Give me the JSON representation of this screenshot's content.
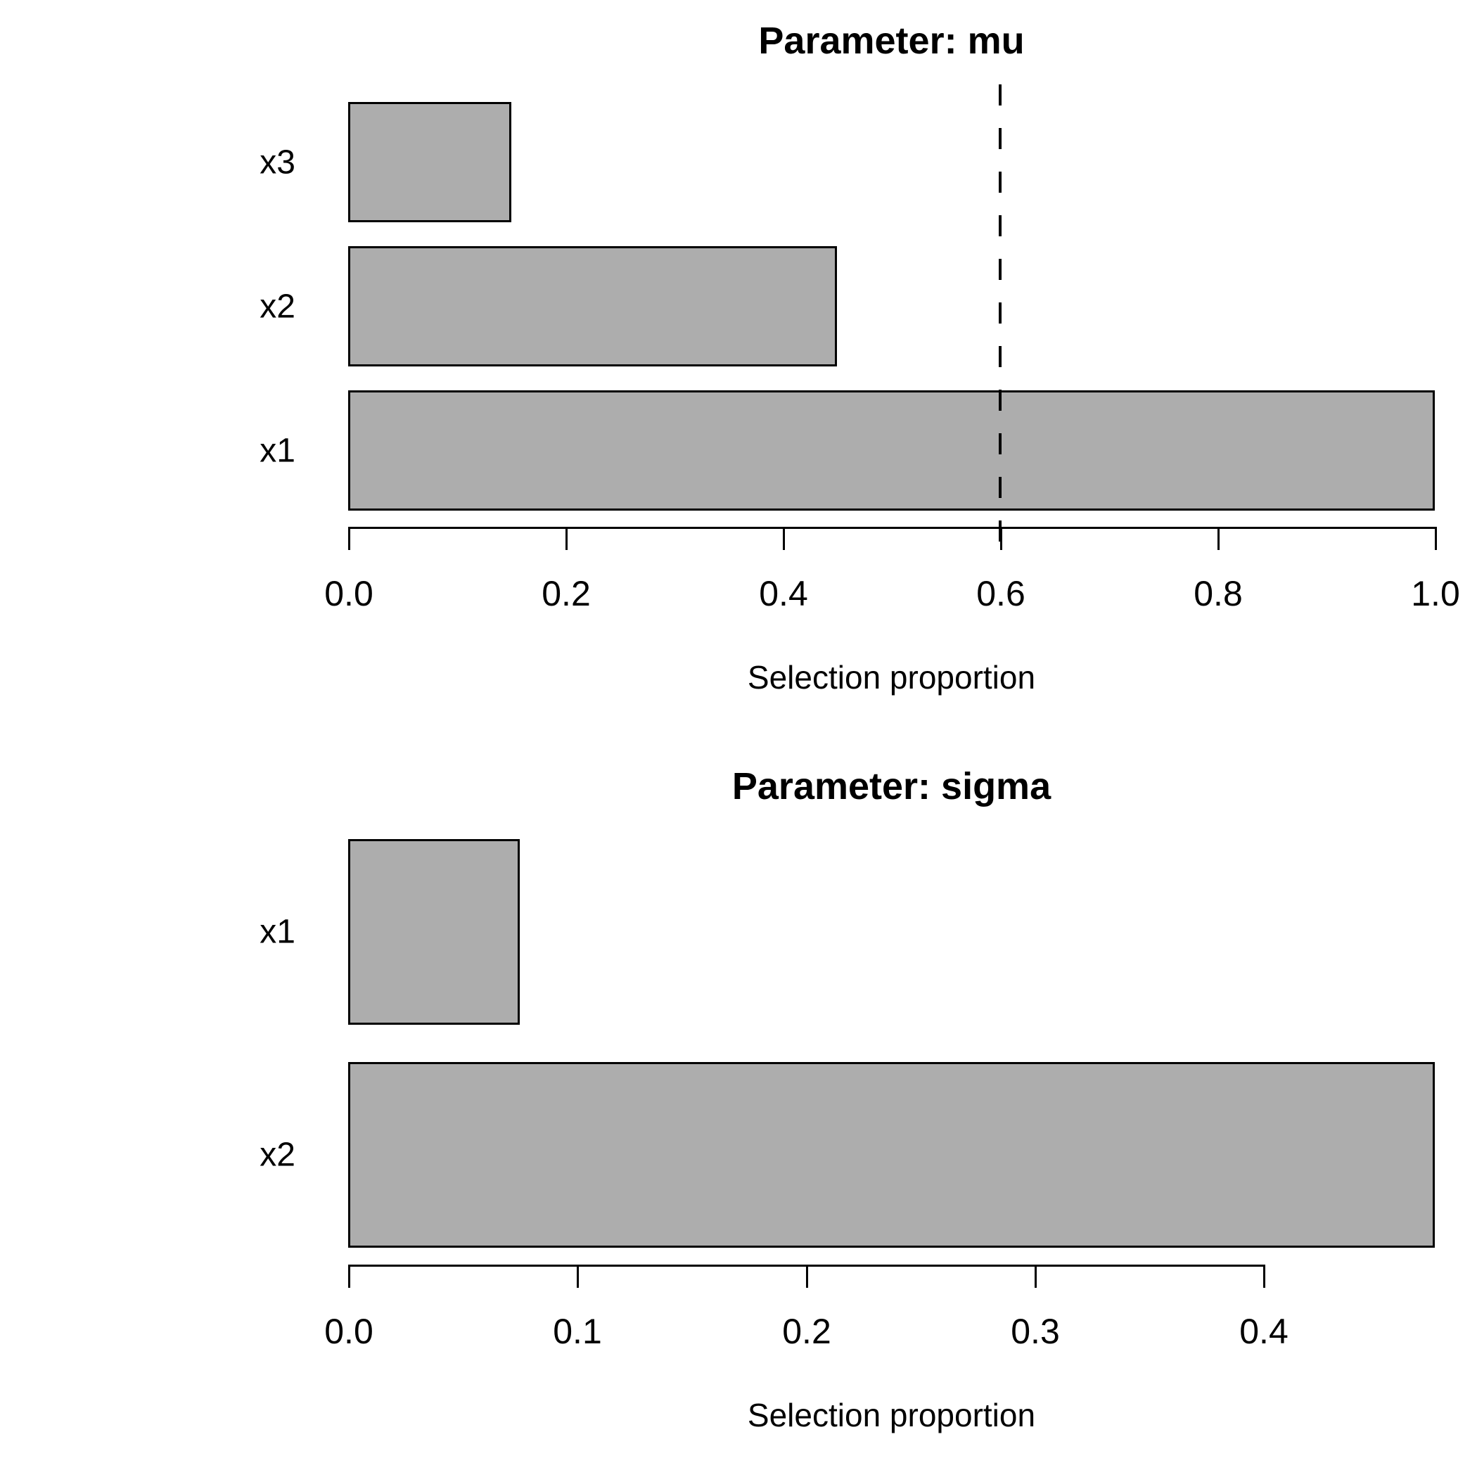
{
  "page": {
    "background": "#ffffff",
    "text_color": "#000000"
  },
  "chart_data": [
    {
      "key": "mu",
      "type": "bar",
      "orientation": "horizontal",
      "title": "Parameter: mu",
      "xlabel": "Selection proportion",
      "categories": [
        "x3",
        "x2",
        "x1"
      ],
      "values": [
        0.15,
        0.45,
        1.0
      ],
      "xlim": [
        0,
        1.0
      ],
      "xticks": [
        0.0,
        0.2,
        0.4,
        0.6,
        0.8,
        1.0
      ],
      "xtick_labels": [
        "0.0",
        "0.2",
        "0.4",
        "0.6",
        "0.8",
        "1.0"
      ],
      "grid": false,
      "legend": false,
      "bar_fill": "#ADADAD",
      "bar_border": "#000000",
      "threshold": {
        "value": 0.6,
        "line_style": "dashed",
        "color": "#000000"
      }
    },
    {
      "key": "sigma",
      "type": "bar",
      "orientation": "horizontal",
      "title": "Parameter: sigma",
      "xlabel": "Selection proportion",
      "categories": [
        "x1",
        "x2"
      ],
      "values": [
        0.075,
        0.475
      ],
      "xlim": [
        0,
        0.475
      ],
      "xticks": [
        0.0,
        0.1,
        0.2,
        0.3,
        0.4
      ],
      "xtick_labels": [
        "0.0",
        "0.1",
        "0.2",
        "0.3",
        "0.4"
      ],
      "grid": false,
      "legend": false,
      "bar_fill": "#ADADAD",
      "bar_border": "#000000",
      "threshold": null
    }
  ]
}
